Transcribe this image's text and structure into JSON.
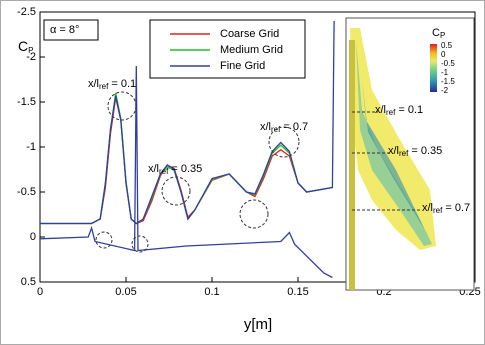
{
  "chart_data": {
    "type": "line",
    "ylabel": {
      "text": "C",
      "sub": "P"
    },
    "xlabel": "y[m]",
    "condition_label": "α = 8°",
    "xlim": [
      0,
      0.25
    ],
    "xticks": [
      0,
      0.05,
      0.1,
      0.15,
      0.2,
      0.25
    ],
    "ylim": [
      -2.5,
      0.5
    ],
    "yticks": [
      -2.5,
      -2,
      -1.5,
      -1,
      -0.5,
      0,
      0.5
    ],
    "y_inverted": true,
    "x": [
      0,
      0.03,
      0.035,
      0.038,
      0.041,
      0.044,
      0.047,
      0.05,
      0.053,
      0.056,
      0.06,
      0.065,
      0.07,
      0.074,
      0.078,
      0.082,
      0.086,
      0.09,
      0.1,
      0.11,
      0.12,
      0.125,
      0.13,
      0.135,
      0.14,
      0.145,
      0.15,
      0.155,
      0.17,
      0.171,
      null,
      0,
      0.028,
      0.03,
      0.032,
      0.055,
      0.056,
      0.057,
      0.085,
      0.14,
      0.145,
      0.148,
      0.165,
      0.17
    ],
    "series": [
      {
        "name": "Coarse Grid",
        "color": "#e02020",
        "values": [
          -0.15,
          -0.15,
          -0.2,
          -0.55,
          -1.15,
          -1.55,
          -1.3,
          -0.6,
          -0.2,
          -0.15,
          -0.18,
          -0.4,
          -0.68,
          -0.8,
          -0.76,
          -0.52,
          -0.22,
          -0.3,
          -0.63,
          -0.7,
          -0.5,
          -0.45,
          -0.65,
          -0.9,
          -0.97,
          -0.9,
          -0.6,
          -0.5,
          -0.55,
          null,
          null,
          null,
          null,
          null,
          null,
          null,
          null,
          null,
          null,
          null,
          null,
          null,
          null,
          null
        ]
      },
      {
        "name": "Medium Grid",
        "color": "#20c020",
        "values": [
          -0.15,
          -0.15,
          -0.2,
          -0.6,
          -1.2,
          -1.6,
          -1.32,
          -0.62,
          -0.2,
          -0.15,
          -0.2,
          -0.43,
          -0.7,
          -0.78,
          -0.74,
          -0.5,
          -0.2,
          -0.3,
          -0.64,
          -0.7,
          -0.5,
          -0.47,
          -0.68,
          -0.93,
          -1.02,
          -0.93,
          -0.6,
          -0.5,
          -0.55,
          null,
          null,
          null,
          null,
          null,
          null,
          null,
          null,
          null,
          null,
          null,
          null,
          null,
          null,
          null
        ]
      },
      {
        "name": "Fine Grid",
        "color": "#3040a0",
        "values": [
          -0.15,
          -0.15,
          -0.2,
          -0.6,
          -1.2,
          -1.57,
          -1.3,
          -0.6,
          -0.2,
          -0.15,
          -0.2,
          -0.45,
          -0.7,
          -0.8,
          -0.75,
          -0.5,
          -0.2,
          -0.3,
          -0.65,
          -0.7,
          -0.5,
          -0.48,
          -0.7,
          -0.95,
          -1.05,
          -0.95,
          -0.6,
          -0.5,
          -0.55,
          -2.4,
          null,
          0.02,
          0,
          -0.1,
          0.05,
          0.15,
          -1.9,
          0.15,
          0.1,
          0.05,
          -0.05,
          0.08,
          0.4,
          0.45
        ]
      }
    ],
    "annotations": [
      {
        "text": "x/l",
        "sub": "ref",
        "rest": " = 0.1"
      },
      {
        "text": "x/l",
        "sub": "ref",
        "rest": " = 0.35"
      },
      {
        "text": "x/l",
        "sub": "ref",
        "rest": " = 0.7"
      }
    ],
    "inset": {
      "colorbar_title": {
        "text": "C",
        "sub": "P"
      },
      "colorbar_ticks": [
        0.5,
        0,
        -0.5,
        -1,
        -1.5,
        -2
      ],
      "sections": [
        {
          "text": "x/l",
          "sub": "ref",
          "rest": " = 0.1"
        },
        {
          "text": "x/l",
          "sub": "ref",
          "rest": " = 0.35"
        },
        {
          "text": "x/l",
          "sub": "ref",
          "rest": " = 0.7"
        }
      ]
    }
  }
}
